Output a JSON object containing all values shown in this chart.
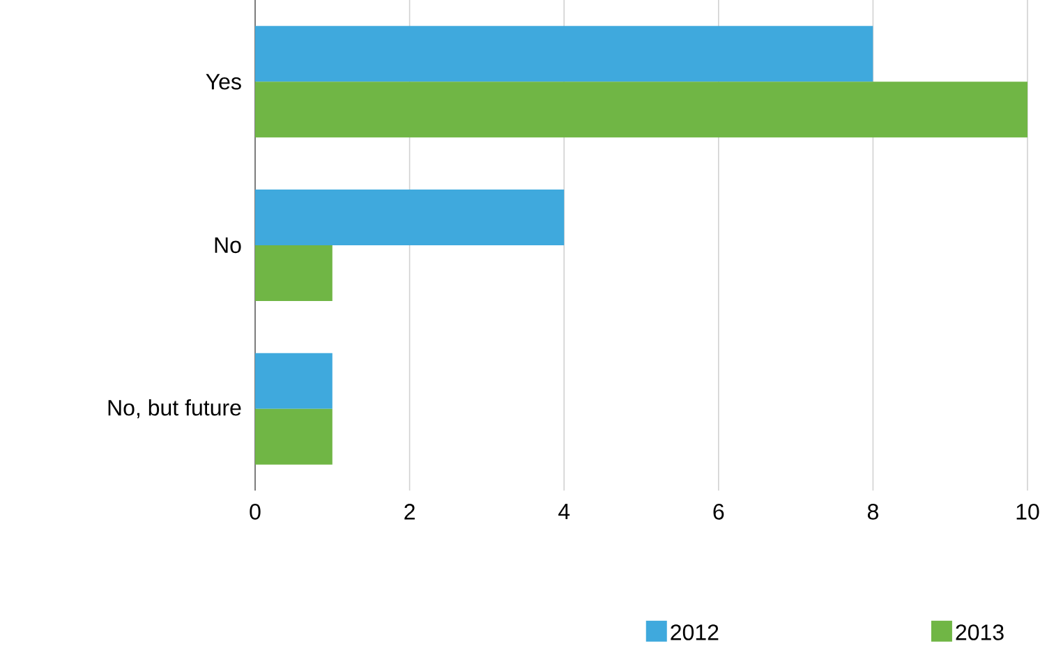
{
  "chart_data": {
    "type": "bar",
    "orientation": "horizontal",
    "categories": [
      "Yes",
      "No",
      "No, but future"
    ],
    "series": [
      {
        "name": "2012",
        "color": "#3fa9dd",
        "values": [
          8,
          4,
          1
        ]
      },
      {
        "name": "2013",
        "color": "#70b645",
        "values": [
          10,
          1,
          1
        ]
      }
    ],
    "xlim": [
      0,
      10
    ],
    "xticks": [
      0,
      2,
      4,
      6,
      8,
      10
    ],
    "grid": "x",
    "legend": "bottom"
  }
}
